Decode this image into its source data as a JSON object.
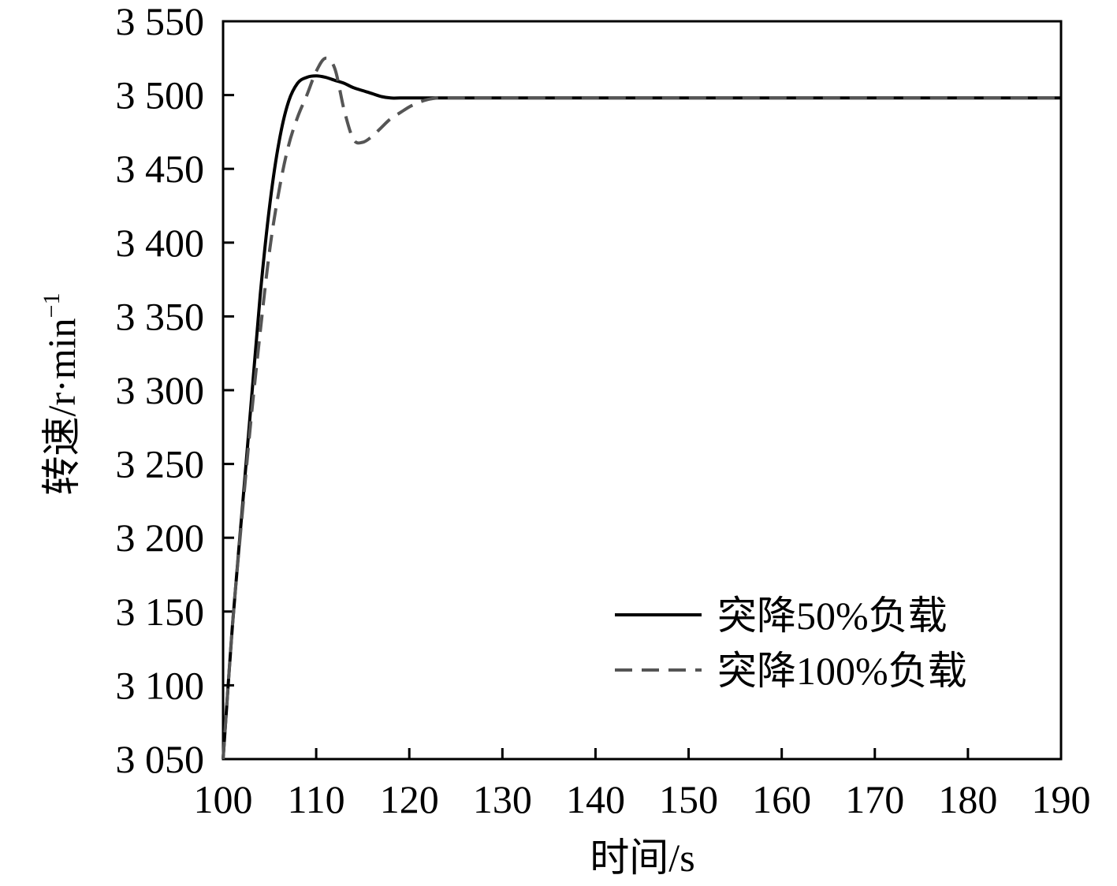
{
  "chart_data": {
    "type": "line",
    "title": "",
    "xlabel": "时间/s",
    "ylabel": "转速/r·min",
    "ylabel_sup": "−1",
    "xlim": [
      100,
      190
    ],
    "ylim": [
      3050,
      3550
    ],
    "xticks": [
      {
        "value": 100,
        "label": "100"
      },
      {
        "value": 110,
        "label": "110"
      },
      {
        "value": 120,
        "label": "120"
      },
      {
        "value": 130,
        "label": "130"
      },
      {
        "value": 140,
        "label": "140"
      },
      {
        "value": 150,
        "label": "150"
      },
      {
        "value": 160,
        "label": "160"
      },
      {
        "value": 170,
        "label": "170"
      },
      {
        "value": 180,
        "label": "180"
      },
      {
        "value": 190,
        "label": "190"
      }
    ],
    "yticks": [
      {
        "value": 3050,
        "label": "3 050"
      },
      {
        "value": 3100,
        "label": "3 100"
      },
      {
        "value": 3150,
        "label": "3 150"
      },
      {
        "value": 3200,
        "label": "3 200"
      },
      {
        "value": 3250,
        "label": "3 250"
      },
      {
        "value": 3300,
        "label": "3 300"
      },
      {
        "value": 3350,
        "label": "3 350"
      },
      {
        "value": 3400,
        "label": "3 400"
      },
      {
        "value": 3450,
        "label": "3 450"
      },
      {
        "value": 3500,
        "label": "3 500"
      },
      {
        "value": 3550,
        "label": "3 550"
      }
    ],
    "grid": false,
    "legend_position": "bottom-right",
    "series": [
      {
        "name": "突降50%负载",
        "color": "#000000",
        "style": "solid",
        "x": [
          100,
          101,
          102,
          103,
          104,
          105,
          106,
          107,
          108,
          109,
          110,
          111,
          112,
          113,
          114,
          115,
          116,
          117,
          118,
          119,
          120,
          125,
          130,
          140,
          150,
          160,
          170,
          180,
          190
        ],
        "y": [
          3050,
          3140,
          3215,
          3290,
          3365,
          3425,
          3468,
          3495,
          3508,
          3512,
          3513,
          3512,
          3510,
          3508,
          3505,
          3503,
          3501,
          3499,
          3498,
          3498,
          3498,
          3498,
          3498,
          3498,
          3498,
          3498,
          3498,
          3498,
          3498
        ]
      },
      {
        "name": "突降100%负载",
        "color": "#555555",
        "style": "dashed",
        "x": [
          100,
          101,
          102,
          103,
          104,
          105,
          106,
          107,
          108,
          109,
          110,
          111,
          112,
          113,
          114,
          115,
          116,
          117,
          118,
          119,
          120,
          121,
          122,
          123,
          124,
          125,
          130,
          140,
          150,
          160,
          170,
          180,
          190
        ],
        "y": [
          3050,
          3140,
          3212,
          3280,
          3340,
          3395,
          3435,
          3465,
          3485,
          3500,
          3516,
          3525,
          3518,
          3490,
          3470,
          3468,
          3472,
          3478,
          3484,
          3488,
          3492,
          3495,
          3497,
          3498,
          3498,
          3498,
          3498,
          3498,
          3498,
          3498,
          3498,
          3498,
          3498
        ]
      }
    ]
  }
}
